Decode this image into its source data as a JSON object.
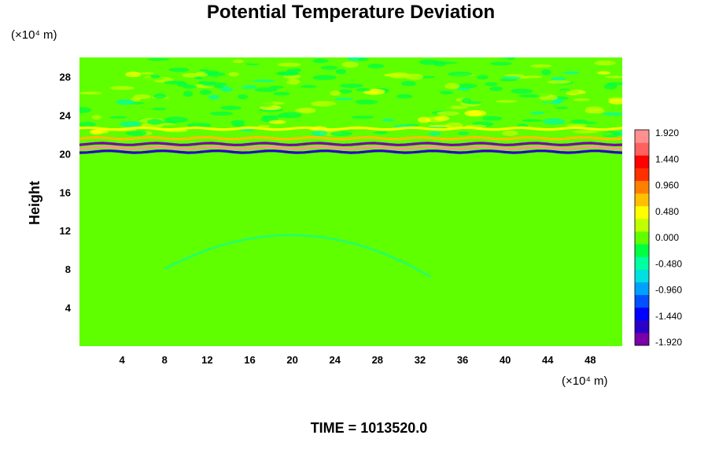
{
  "chart_data": {
    "type": "heatmap",
    "title": "Potential Temperature Deviation",
    "ylabel": "Height",
    "xunit": "(×10⁴ m)",
    "yunit": "(×10⁴ m)",
    "footer": "TIME = 1013520.0",
    "xlim": [
      0,
      51
    ],
    "ylim": [
      0,
      30
    ],
    "x_ticks": [
      4,
      8,
      12,
      16,
      20,
      24,
      28,
      32,
      36,
      40,
      44,
      48
    ],
    "y_ticks": [
      4,
      8,
      12,
      16,
      20,
      24,
      28
    ],
    "colorbar": {
      "range": [
        -1.92,
        1.92
      ],
      "tick_labels": [
        "1.920",
        "1.440",
        "0.960",
        "0.480",
        "0.000",
        "-0.480",
        "-0.960",
        "-1.440",
        "-1.920"
      ],
      "colors_low_to_high": [
        "#7a00a8",
        "#2a00c8",
        "#0000ff",
        "#0050ff",
        "#00a0ff",
        "#00e0e0",
        "#00ffa0",
        "#00ff40",
        "#60ff00",
        "#c0ff00",
        "#ffff00",
        "#ffc000",
        "#ff8000",
        "#ff3000",
        "#ff0000",
        "#ff6060",
        "#ff9090"
      ]
    },
    "background_value": 0.0,
    "features": [
      {
        "kind": "band",
        "y": 21.0,
        "value": -1.9
      },
      {
        "kind": "band",
        "y": 20.2,
        "value": -1.6
      },
      {
        "kind": "band",
        "y": 20.6,
        "value": 1.7
      },
      {
        "kind": "band",
        "y": 21.6,
        "value": 0.7
      },
      {
        "kind": "band",
        "y": 22.6,
        "value": 0.5
      },
      {
        "kind": "wave_layer",
        "y_from": 22,
        "y_to": 30,
        "amplitude": 0.4
      },
      {
        "kind": "arc",
        "value": -0.35,
        "x_from": 8,
        "x_to": 33,
        "y_peak": 13
      }
    ]
  }
}
